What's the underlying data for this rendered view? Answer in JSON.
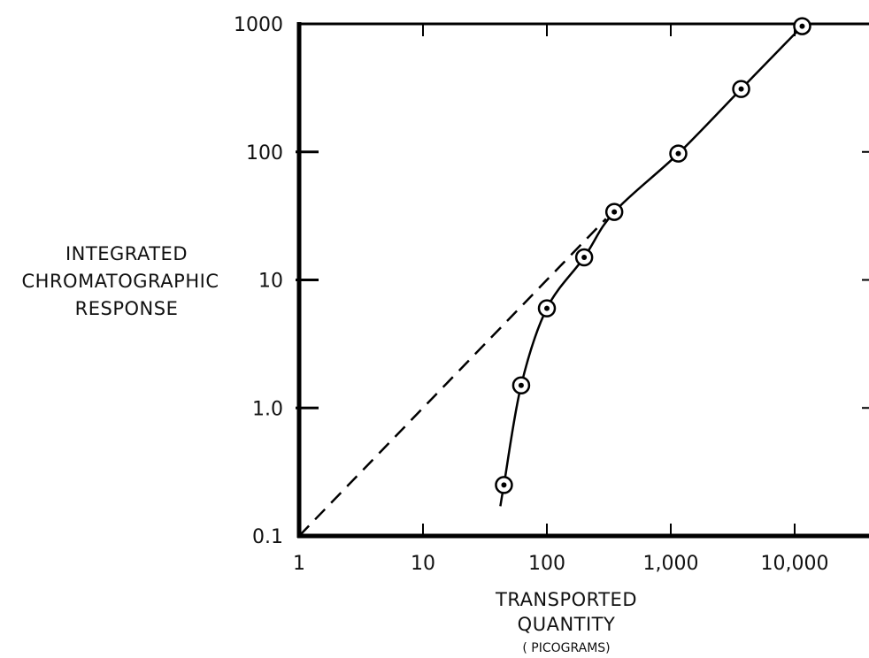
{
  "chart_data": {
    "type": "line",
    "title": "",
    "x_scale": "log",
    "y_scale": "log",
    "xlim": [
      1,
      30000
    ],
    "ylim": [
      0.1,
      1000
    ],
    "x_ticks": [
      1,
      10,
      100,
      1000,
      10000
    ],
    "x_tick_labels": [
      "1",
      "10",
      "100",
      "1,000",
      "10,000"
    ],
    "y_ticks": [
      0.1,
      1,
      10,
      100,
      1000
    ],
    "y_tick_labels": [
      "0.1",
      "1.0",
      "10",
      "100",
      "1000"
    ],
    "xlabel": [
      "TRANSPORTED",
      "QUANTITY"
    ],
    "xlabel_unit": "( PICOGRAMS)",
    "ylabel": [
      "INTEGRATED",
      "CHROMATOGRAPHIC",
      "RESPONSE"
    ],
    "grid": false,
    "series": [
      {
        "style": "solid",
        "marker": "circle-dot",
        "x": [
          45,
          62,
          100,
          200,
          350,
          1150,
          3700,
          11500
        ],
        "y": [
          0.25,
          1.5,
          6,
          15,
          34,
          97,
          310,
          960
        ]
      },
      {
        "style": "dashed",
        "marker": "none",
        "x": [
          1,
          300
        ],
        "y": [
          0.1,
          30
        ]
      }
    ]
  }
}
